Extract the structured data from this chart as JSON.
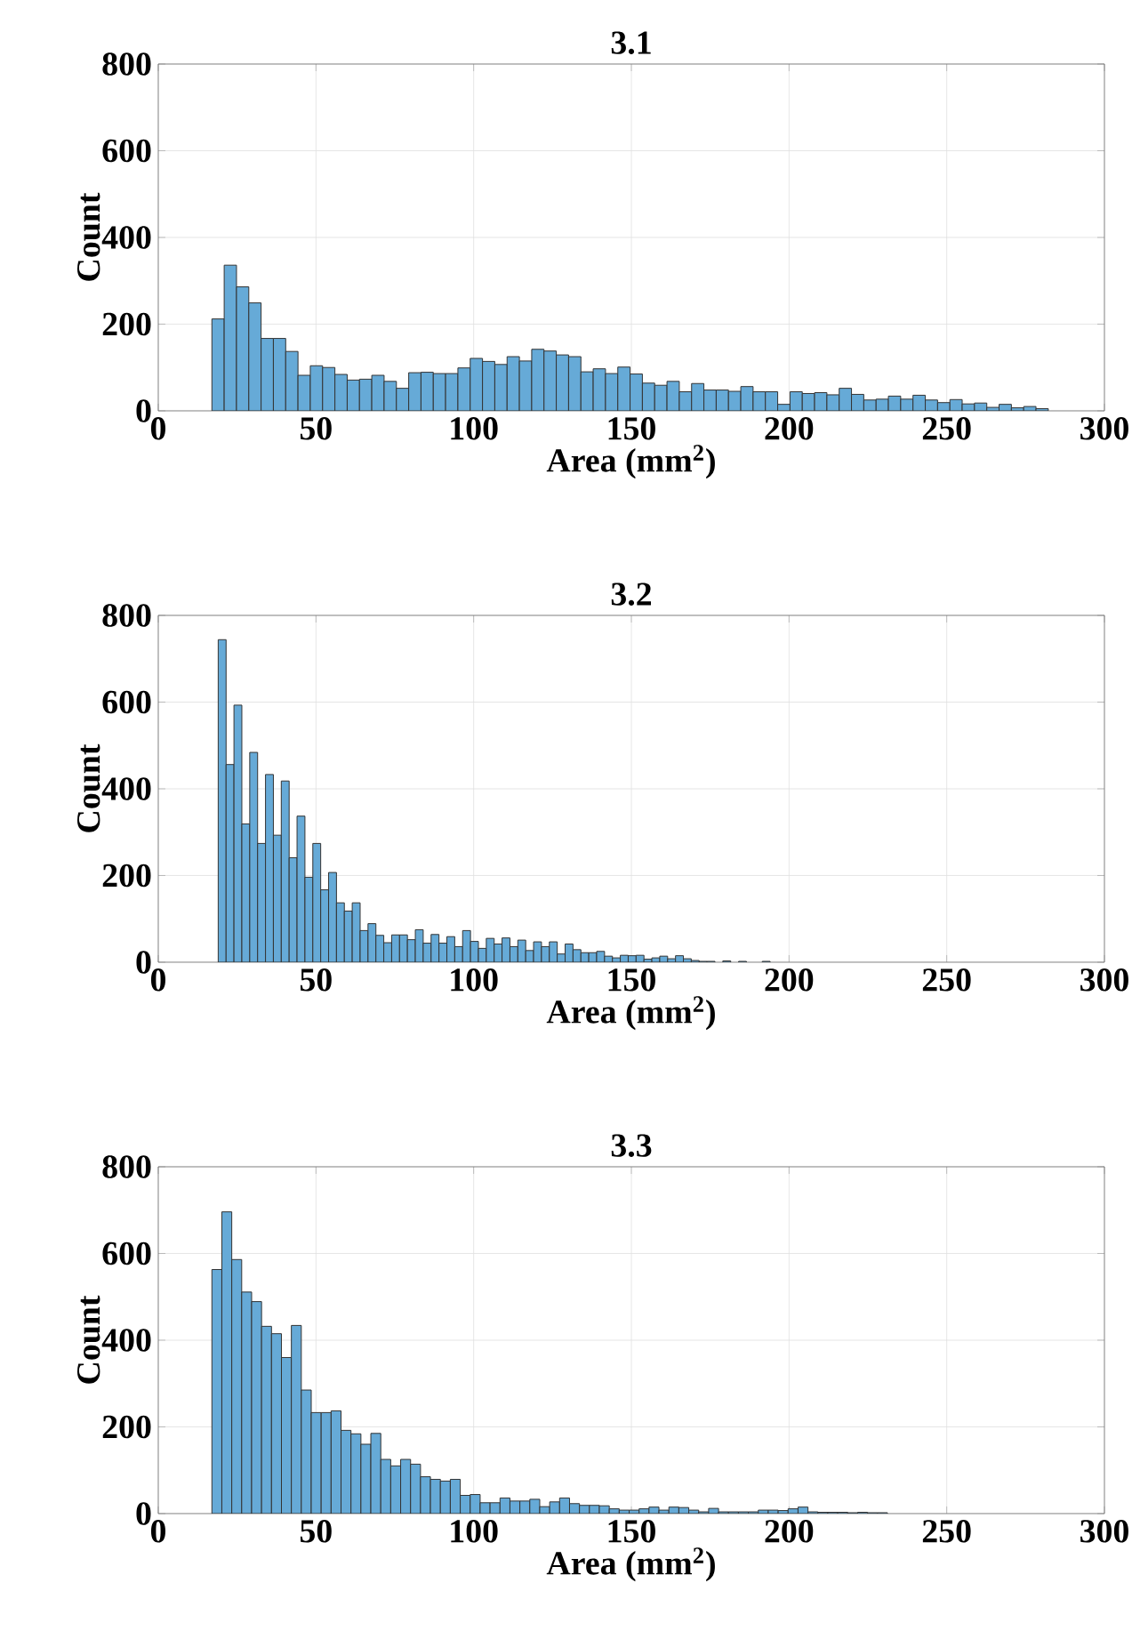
{
  "chart_data": [
    {
      "type": "histogram",
      "title": "3.1",
      "xlabel": "Area (mm$^{2}$)",
      "ylabel": "Count",
      "color": "#66aad7",
      "grid": true,
      "xlim": [
        0,
        300
      ],
      "xticks": [
        0,
        50,
        100,
        150,
        200,
        250,
        300
      ],
      "ylim": [
        0,
        800
      ],
      "yticks": [
        0,
        200,
        400,
        600,
        800
      ],
      "bins": [
        17,
        20.9,
        24.8,
        28.7,
        32.6,
        36.5,
        40.4,
        44.3,
        48.2,
        52.1,
        56,
        59.9,
        63.8,
        67.7,
        71.6,
        75.5,
        79.4,
        83.3,
        87.2,
        91.1,
        95,
        98.9,
        102.8,
        106.7,
        110.6,
        114.5,
        118.4,
        122.3,
        126.2,
        130.1,
        134,
        137.9,
        141.8,
        145.7,
        149.6,
        153.5,
        157.4,
        161.3,
        165.2,
        169.1,
        173,
        176.9,
        180.8,
        184.7,
        188.6,
        192.5,
        196.4,
        200.3,
        204.2,
        208.1,
        212,
        215.9,
        219.8,
        223.7,
        227.6,
        231.5,
        235.4,
        239.3,
        243.2,
        247.1,
        251,
        254.9,
        258.8,
        262.7,
        266.6,
        270.5,
        274.4,
        278.3,
        282.2
      ],
      "values": [
        212,
        336,
        286,
        249,
        167,
        167,
        137,
        82,
        104,
        100,
        84,
        71,
        73,
        82,
        68,
        52,
        88,
        89,
        86,
        86,
        99,
        121,
        114,
        107,
        125,
        115,
        142,
        138,
        129,
        125,
        90,
        97,
        86,
        101,
        85,
        64,
        59,
        68,
        44,
        63,
        48,
        48,
        45,
        56,
        44,
        44,
        15,
        44,
        40,
        42,
        37,
        52,
        38,
        25,
        27,
        34,
        27,
        36,
        25,
        19,
        26,
        16,
        18,
        8,
        15,
        7,
        10,
        5
      ]
    },
    {
      "type": "histogram",
      "title": "3.2",
      "xlabel": "Area (mm$^{2}$)",
      "ylabel": "Count",
      "color": "#66aad7",
      "grid": true,
      "xlim": [
        0,
        300
      ],
      "xticks": [
        0,
        50,
        100,
        150,
        200,
        250,
        300
      ],
      "ylim": [
        0,
        800
      ],
      "yticks": [
        0,
        200,
        400,
        600,
        800
      ],
      "bins": [
        19,
        21.5,
        24,
        26.5,
        29,
        31.5,
        34,
        36.5,
        39,
        41.5,
        44,
        46.5,
        49,
        51.5,
        54,
        56.5,
        59,
        61.5,
        64,
        66.5,
        69,
        71.5,
        74,
        76.5,
        79,
        81.5,
        84,
        86.5,
        89,
        91.5,
        94,
        96.5,
        99,
        101.5,
        104,
        106.5,
        109,
        111.5,
        114,
        116.5,
        119,
        121.5,
        124,
        126.5,
        129,
        131.5,
        134,
        136.5,
        139,
        141.5,
        144,
        146.5,
        149,
        151.5,
        154,
        156.5,
        159,
        161.5,
        164,
        166.5,
        169,
        171.5,
        174,
        176.5,
        179,
        181.5,
        184,
        186.5,
        189,
        191.5,
        194,
        196.5,
        199
      ],
      "values": [
        744,
        456,
        593,
        319,
        484,
        274,
        433,
        293,
        418,
        241,
        337,
        196,
        274,
        167,
        207,
        137,
        118,
        137,
        73,
        89,
        62,
        45,
        63,
        63,
        52,
        75,
        44,
        64,
        44,
        59,
        36,
        73,
        48,
        32,
        55,
        42,
        56,
        36,
        51,
        27,
        47,
        36,
        47,
        19,
        42,
        29,
        22,
        22,
        25,
        14,
        10,
        16,
        15,
        16,
        7,
        10,
        14,
        8,
        15,
        8,
        4,
        2,
        2,
        null,
        3,
        null,
        2,
        null,
        null,
        2,
        null,
        null
      ]
    },
    {
      "type": "histogram",
      "title": "3.3",
      "xlabel": "Area (mm$^{2}$)",
      "ylabel": "Count",
      "color": "#66aad7",
      "grid": true,
      "xlim": [
        0,
        300
      ],
      "xticks": [
        0,
        50,
        100,
        150,
        200,
        250,
        300
      ],
      "ylim": [
        0,
        800
      ],
      "yticks": [
        0,
        200,
        400,
        600,
        800
      ],
      "bins": [
        17,
        20.15,
        23.3,
        26.45,
        29.6,
        32.75,
        35.9,
        39.05,
        42.2,
        45.35,
        48.5,
        51.65,
        54.8,
        57.95,
        61.1,
        64.25,
        67.4,
        70.55,
        73.7,
        76.85,
        80,
        83.15,
        86.3,
        89.45,
        92.6,
        95.75,
        98.9,
        102.05,
        105.2,
        108.35,
        111.5,
        114.65,
        117.8,
        120.95,
        124.1,
        127.25,
        130.4,
        133.55,
        136.7,
        139.85,
        143,
        146.15,
        149.3,
        152.45,
        155.6,
        158.75,
        161.9,
        165.05,
        168.2,
        171.35,
        174.5,
        177.65,
        180.8,
        183.95,
        187.1,
        190.25,
        193.4,
        196.55,
        199.7,
        202.85,
        206,
        209.15,
        212.3,
        215.45,
        218.6,
        221.75,
        224.9,
        228.05,
        231.2
      ],
      "values": [
        563,
        696,
        586,
        511,
        489,
        432,
        415,
        360,
        434,
        285,
        233,
        233,
        237,
        192,
        184,
        160,
        185,
        125,
        110,
        125,
        114,
        85,
        79,
        75,
        79,
        42,
        44,
        25,
        25,
        36,
        29,
        29,
        33,
        16,
        27,
        36,
        23,
        19,
        19,
        18,
        11,
        8,
        8,
        11,
        15,
        8,
        15,
        14,
        8,
        4,
        12,
        4,
        4,
        4,
        4,
        8,
        8,
        7,
        11,
        15,
        4,
        3,
        3,
        3,
        2,
        3,
        2,
        2
      ]
    }
  ]
}
